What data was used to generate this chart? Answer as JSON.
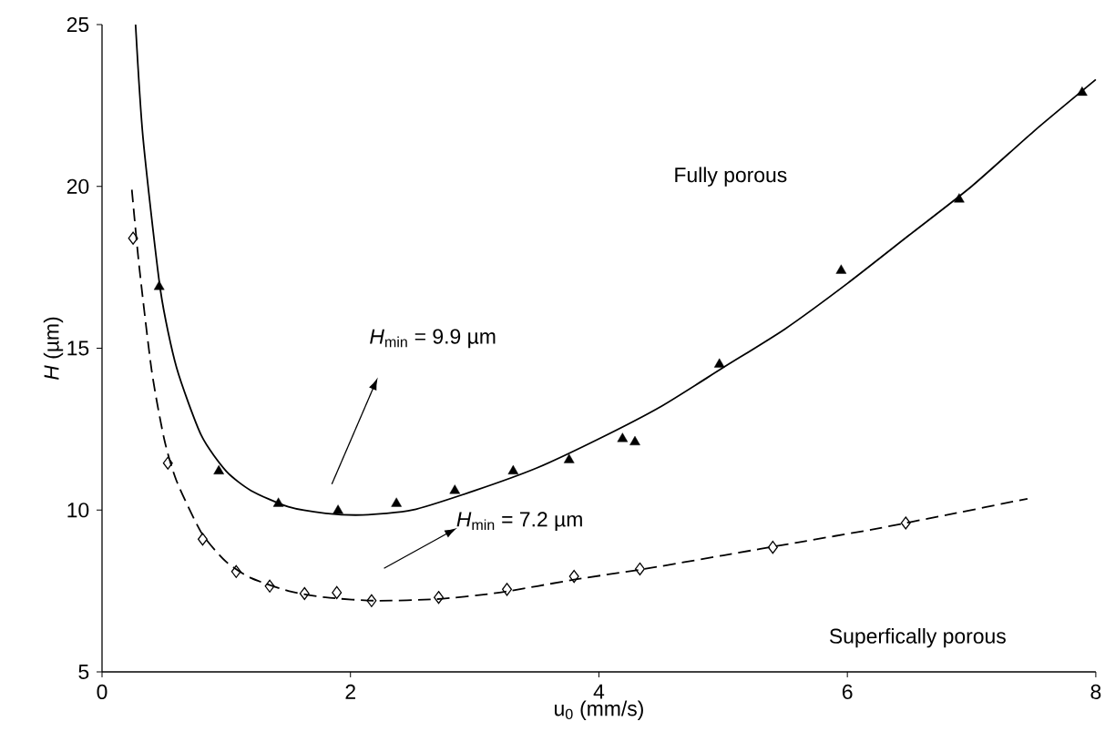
{
  "chart_data": {
    "type": "scatter",
    "xlabel": "u$_{0}$ (mm/s)",
    "ylabel": "*H* (µm)",
    "xlim": [
      0,
      8
    ],
    "ylim": [
      5,
      25
    ],
    "xticks": [
      0,
      2,
      4,
      6,
      8
    ],
    "yticks": [
      5,
      10,
      15,
      20,
      25
    ],
    "grid": false,
    "annotations": [
      "Fully porous",
      "*H*$_{min}$ = 9.9 µm",
      "*H*$_{min}$ = 7.2 µm",
      "Superfically porous"
    ],
    "series": [
      {
        "marker": "triangle",
        "color": "#000000",
        "x": [
          0.46,
          0.94,
          1.42,
          1.9,
          2.37,
          2.84,
          3.31,
          3.76,
          4.19,
          4.29,
          4.97,
          5.95,
          6.9,
          7.89
        ],
        "values": [
          16.9,
          11.2,
          10.2,
          9.98,
          10.2,
          10.6,
          11.2,
          11.55,
          12.2,
          12.1,
          14.5,
          17.4,
          19.6,
          22.9
        ]
      },
      {
        "marker": "diamond",
        "color": "#000000",
        "x": [
          0.25,
          0.53,
          0.81,
          1.08,
          1.35,
          1.63,
          1.89,
          2.17,
          2.71,
          3.26,
          3.8,
          4.33,
          5.4,
          6.47
        ],
        "values": [
          18.4,
          11.45,
          9.1,
          8.1,
          7.65,
          7.42,
          7.45,
          7.2,
          7.3,
          7.55,
          7.95,
          8.18,
          8.85,
          9.6
        ]
      },
      {
        "type": "line",
        "marker": "none",
        "line_style": "solid",
        "color": "#000000",
        "x": [
          0.27,
          0.33,
          0.47,
          0.6,
          0.8,
          1.0,
          1.2,
          1.5,
          1.8,
          2.1,
          2.5,
          3.0,
          3.5,
          4.0,
          4.5,
          5.0,
          5.5,
          6.0,
          6.5,
          7.0,
          7.5,
          8.0
        ],
        "values": [
          25,
          21.5,
          16.8,
          14.4,
          12.3,
          11.2,
          10.6,
          10.1,
          9.9,
          9.85,
          10.0,
          10.6,
          11.3,
          12.2,
          13.2,
          14.4,
          15.6,
          17.0,
          18.5,
          20.0,
          21.7,
          23.3
        ]
      },
      {
        "type": "line",
        "marker": "none",
        "line_style": "dashed",
        "color": "#000000",
        "x": [
          0.24,
          0.3,
          0.4,
          0.5,
          0.6,
          0.8,
          1.0,
          1.2,
          1.5,
          1.8,
          2.2,
          2.7,
          3.2,
          3.8,
          4.4,
          5.0,
          5.6,
          6.2,
          6.8,
          7.45
        ],
        "values": [
          19.9,
          17.5,
          14.3,
          12.2,
          10.9,
          9.3,
          8.4,
          7.9,
          7.5,
          7.3,
          7.2,
          7.25,
          7.45,
          7.85,
          8.2,
          8.6,
          9.0,
          9.4,
          9.85,
          10.35
        ]
      }
    ]
  }
}
